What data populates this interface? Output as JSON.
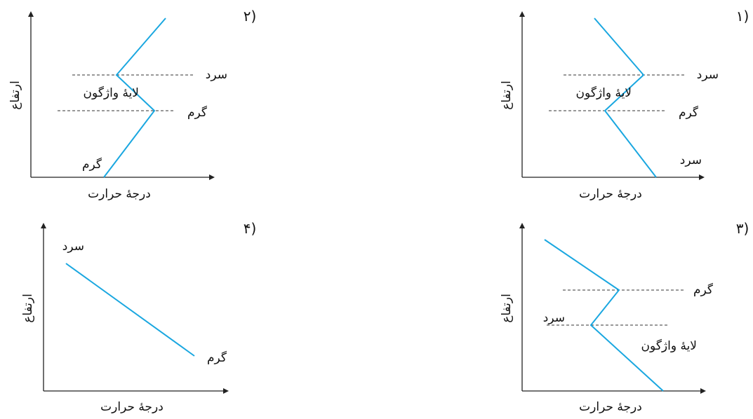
{
  "panels": [
    {
      "number": "۱)",
      "y_label": "ارتفاع",
      "x_label": "درجهٔ حرارت",
      "upper_level_label": "سرد",
      "inversion_label": "لایهٔ واژگون",
      "lower_level_label": "گرم",
      "bottom_label": "سرد"
    },
    {
      "number": "۲)",
      "y_label": "ارتفاع",
      "x_label": "درجهٔ حرارت",
      "upper_level_label": "سرد",
      "inversion_label": "لایهٔ واژگون",
      "lower_level_label": "گرم",
      "bottom_label": "گرم"
    },
    {
      "number": "۳)",
      "y_label": "ارتفاع",
      "x_label": "درجهٔ حرارت",
      "upper_level_label": "گرم",
      "lower_level_label": "سرد",
      "inversion_label": "لایهٔ واژگون"
    },
    {
      "number": "۴)",
      "y_label": "ارتفاع",
      "x_label": "درجهٔ حرارت",
      "top_label": "سرد",
      "bottom_label": "گرم"
    }
  ],
  "colors": {
    "curve": "#1aa7e0",
    "axis": "#222222"
  }
}
